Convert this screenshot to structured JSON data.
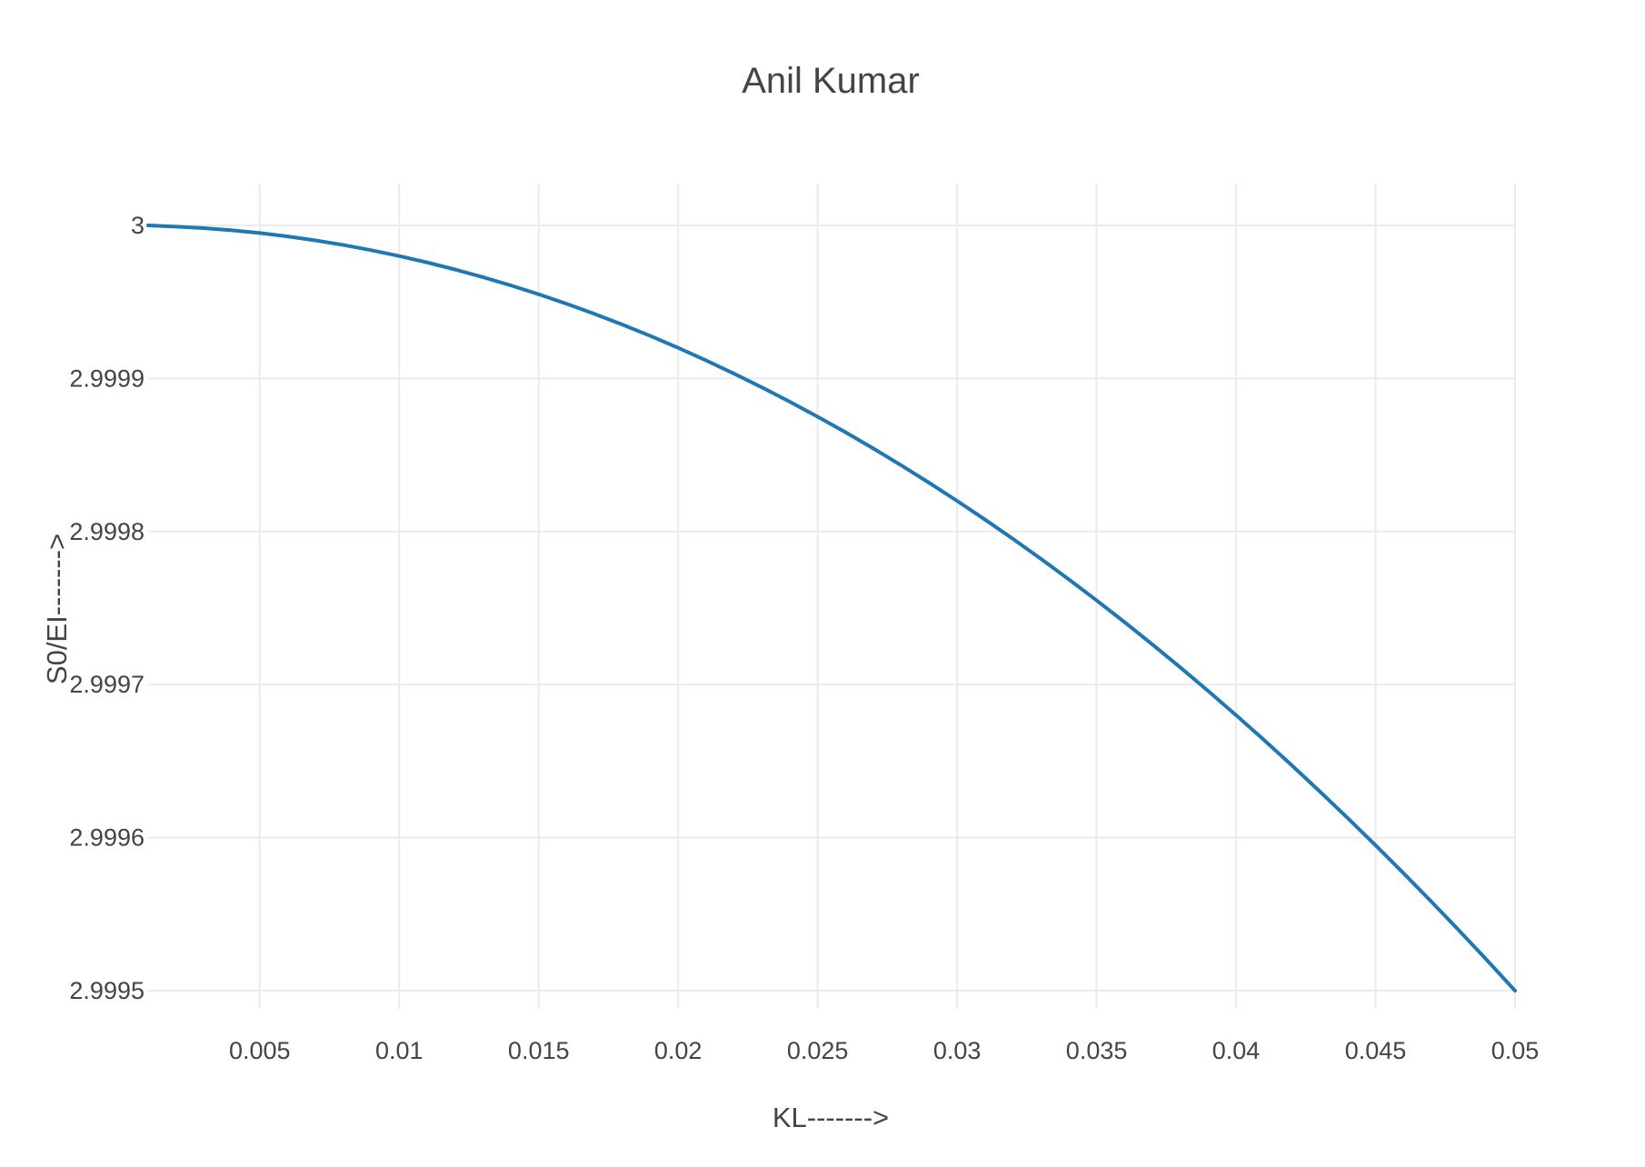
{
  "chart_data": {
    "type": "line",
    "title": "Anil Kumar",
    "xlabel": "KL------->",
    "ylabel": "S0/EI------->",
    "xlim": [
      0.001,
      0.05
    ],
    "ylim": [
      2.9995,
      3.0
    ],
    "xticks": [
      {
        "value": 0.005,
        "label": "0.005"
      },
      {
        "value": 0.01,
        "label": "0.01"
      },
      {
        "value": 0.015,
        "label": "0.015"
      },
      {
        "value": 0.02,
        "label": "0.02"
      },
      {
        "value": 0.025,
        "label": "0.025"
      },
      {
        "value": 0.03,
        "label": "0.03"
      },
      {
        "value": 0.035,
        "label": "0.035"
      },
      {
        "value": 0.04,
        "label": "0.04"
      },
      {
        "value": 0.045,
        "label": "0.045"
      },
      {
        "value": 0.05,
        "label": "0.05"
      }
    ],
    "yticks": [
      {
        "value": 3.0,
        "label": "3"
      },
      {
        "value": 2.9999,
        "label": "2.9999"
      },
      {
        "value": 2.9998,
        "label": "2.9998"
      },
      {
        "value": 2.9997,
        "label": "2.9997"
      },
      {
        "value": 2.9996,
        "label": "2.9996"
      },
      {
        "value": 2.9995,
        "label": "2.9995"
      }
    ],
    "grid": true,
    "legend": "none",
    "series": [
      {
        "color": "#1f77b4",
        "x": [
          0.001,
          0.002,
          0.003,
          0.004,
          0.005,
          0.006,
          0.007,
          0.008,
          0.009,
          0.01,
          0.011,
          0.012,
          0.013,
          0.014,
          0.015,
          0.016,
          0.017,
          0.018,
          0.019,
          0.02,
          0.021,
          0.022,
          0.023,
          0.024,
          0.025,
          0.026,
          0.027,
          0.028,
          0.029,
          0.03,
          0.031,
          0.032,
          0.033,
          0.034,
          0.035,
          0.036,
          0.037,
          0.038,
          0.039,
          0.04,
          0.041,
          0.042,
          0.043,
          0.044,
          0.045,
          0.046,
          0.047,
          0.048,
          0.049,
          0.05
        ],
        "y": [
          3.0,
          2.9999992,
          2.9999982,
          2.9999968,
          2.999995,
          2.9999928,
          2.9999902,
          2.9999872,
          2.9999838,
          2.99998,
          2.9999758,
          2.9999712,
          2.9999662,
          2.9999608,
          2.999955,
          2.9999488,
          2.9999422,
          2.9999352,
          2.9999278,
          2.99992,
          2.9999118,
          2.9999032,
          2.9998942,
          2.9998848,
          2.999875,
          2.9998648,
          2.9998542,
          2.9998432,
          2.9998318,
          2.99982,
          2.9998078,
          2.9997952,
          2.9997822,
          2.9997688,
          2.999755,
          2.9997408,
          2.9997262,
          2.9997112,
          2.9996958,
          2.99968,
          2.9996638,
          2.9996472,
          2.9996302,
          2.9996128,
          2.999595,
          2.9995768,
          2.9995582,
          2.9995392,
          2.9995198,
          2.9995
        ]
      }
    ]
  }
}
